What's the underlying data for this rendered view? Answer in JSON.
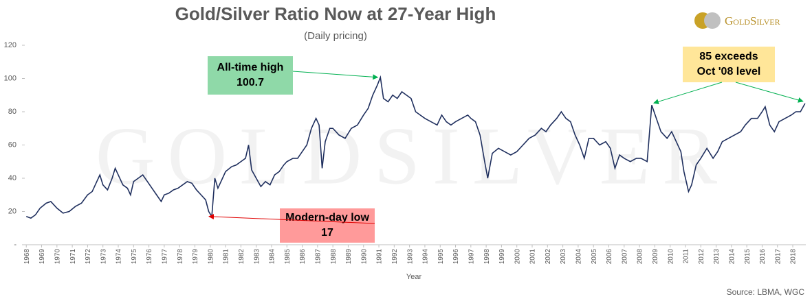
{
  "chart_data": {
    "type": "line",
    "title": "Gold/Silver Ratio Now at 27-Year High",
    "subtitle": "(Daily pricing)",
    "x_label": "Year",
    "source": "Source: LBMA, WGC",
    "logo": "GoldSilver",
    "watermark": "GoldSilver",
    "xlim": [
      1967.9,
      2018.85
    ],
    "xticks": [
      1968,
      1969,
      1970,
      1971,
      1972,
      1973,
      1974,
      1975,
      1976,
      1977,
      1978,
      1979,
      1980,
      1981,
      1982,
      1983,
      1984,
      1985,
      1986,
      1987,
      1988,
      1989,
      1990,
      1991,
      1992,
      1993,
      1994,
      1995,
      1996,
      1997,
      1998,
      1999,
      2000,
      2001,
      2002,
      2003,
      2004,
      2005,
      2006,
      2007,
      2008,
      2009,
      2010,
      2011,
      2012,
      2013,
      2014,
      2015,
      2016,
      2017,
      2018
    ],
    "ylim": [
      0,
      120
    ],
    "yticks": [
      {
        "value": 0,
        "label": "-"
      },
      20,
      40,
      60,
      80,
      100,
      120
    ],
    "grid": false,
    "series": [
      {
        "name": "Gold/Silver Ratio",
        "color": "#1f2f5e",
        "x": [
          1968.0,
          1968.3,
          1968.6,
          1968.9,
          1969.3,
          1969.6,
          1970.0,
          1970.4,
          1970.8,
          1971.2,
          1971.6,
          1972.0,
          1972.3,
          1972.6,
          1972.8,
          1973.0,
          1973.3,
          1973.6,
          1973.8,
          1974.0,
          1974.3,
          1974.6,
          1974.8,
          1975.0,
          1975.3,
          1975.6,
          1975.9,
          1976.2,
          1976.5,
          1976.8,
          1977.0,
          1977.3,
          1977.6,
          1977.9,
          1978.2,
          1978.5,
          1978.8,
          1979.1,
          1979.4,
          1979.7,
          1979.9,
          1980.1,
          1980.3,
          1980.5,
          1980.8,
          1981.0,
          1981.4,
          1981.7,
          1982.0,
          1982.3,
          1982.5,
          1982.7,
          1983.0,
          1983.3,
          1983.6,
          1983.9,
          1984.2,
          1984.5,
          1984.8,
          1985.0,
          1985.4,
          1985.7,
          1986.0,
          1986.3,
          1986.6,
          1986.9,
          1987.1,
          1987.3,
          1987.5,
          1987.8,
          1988.0,
          1988.4,
          1988.8,
          1989.2,
          1989.6,
          1990.0,
          1990.3,
          1990.6,
          1990.9,
          1991.1,
          1991.3,
          1991.6,
          1991.9,
          1992.2,
          1992.5,
          1992.8,
          1993.1,
          1993.4,
          1993.7,
          1994.0,
          1994.4,
          1994.8,
          1995.1,
          1995.4,
          1995.7,
          1996.0,
          1996.4,
          1996.8,
          1997.0,
          1997.3,
          1997.6,
          1997.9,
          1998.1,
          1998.4,
          1998.8,
          1999.2,
          1999.6,
          2000.0,
          2000.4,
          2000.8,
          2001.2,
          2001.6,
          2001.9,
          2002.2,
          2002.6,
          2002.9,
          2003.2,
          2003.5,
          2003.8,
          2004.1,
          2004.4,
          2004.7,
          2005.0,
          2005.4,
          2005.8,
          2006.1,
          2006.4,
          2006.7,
          2007.0,
          2007.4,
          2007.8,
          2008.1,
          2008.5,
          2008.8,
          2009.1,
          2009.4,
          2009.8,
          2010.1,
          2010.4,
          2010.7,
          2010.9,
          2011.2,
          2011.4,
          2011.7,
          2012.0,
          2012.4,
          2012.8,
          2013.1,
          2013.4,
          2013.8,
          2014.2,
          2014.6,
          2014.9,
          2015.3,
          2015.7,
          2016.0,
          2016.2,
          2016.5,
          2016.8,
          2017.1,
          2017.5,
          2017.9,
          2018.2,
          2018.5,
          2018.8
        ],
        "values": [
          17,
          16,
          18,
          22,
          25,
          26,
          22,
          19,
          20,
          23,
          25,
          30,
          32,
          38,
          42,
          36,
          33,
          40,
          46,
          42,
          36,
          34,
          30,
          38,
          40,
          42,
          38,
          34,
          30,
          26,
          30,
          31,
          33,
          34,
          36,
          38,
          37,
          33,
          30,
          27,
          20,
          17.0,
          40,
          34,
          40,
          44,
          47,
          48,
          50,
          52,
          60,
          45,
          40,
          35,
          38,
          36,
          42,
          44,
          48,
          50,
          52,
          52,
          56,
          60,
          70,
          76,
          72,
          46,
          62,
          70,
          70,
          66,
          64,
          70,
          72,
          78,
          82,
          90,
          96,
          100.7,
          88,
          86,
          90,
          88,
          92,
          90,
          88,
          80,
          78,
          76,
          74,
          72,
          78,
          74,
          72,
          74,
          76,
          78,
          76,
          74,
          66,
          50,
          40,
          55,
          58,
          56,
          54,
          56,
          60,
          64,
          66,
          70,
          68,
          72,
          76,
          80,
          76,
          74,
          66,
          60,
          52,
          64,
          64,
          60,
          62,
          58,
          46,
          54,
          52,
          50,
          52,
          52,
          50,
          84,
          76,
          68,
          64,
          68,
          62,
          56,
          44,
          32,
          36,
          48,
          52,
          58,
          52,
          56,
          62,
          64,
          66,
          68,
          72,
          76,
          76,
          80,
          83,
          72,
          68,
          74,
          76,
          78,
          80,
          80,
          85
        ]
      }
    ],
    "annotations": [
      {
        "lines": [
          "All-time high"
        ],
        "value": 100.7,
        "x": 1991.1,
        "color": "#8fd9a8",
        "arrow_color": "#00b050"
      },
      {
        "lines": [
          "Modern-day low"
        ],
        "value": 17.0,
        "x": 1980.1,
        "color": "#ff9a9a",
        "arrow_color": "#e00000"
      },
      {
        "lines": [
          "85 exceeds",
          "Oct '08 level"
        ],
        "color": "#ffe699",
        "arrow_color": "#00b050",
        "points": [
          {
            "x": 2008.8,
            "y": 84
          },
          {
            "x": 2018.8,
            "y": 85
          }
        ]
      }
    ]
  }
}
